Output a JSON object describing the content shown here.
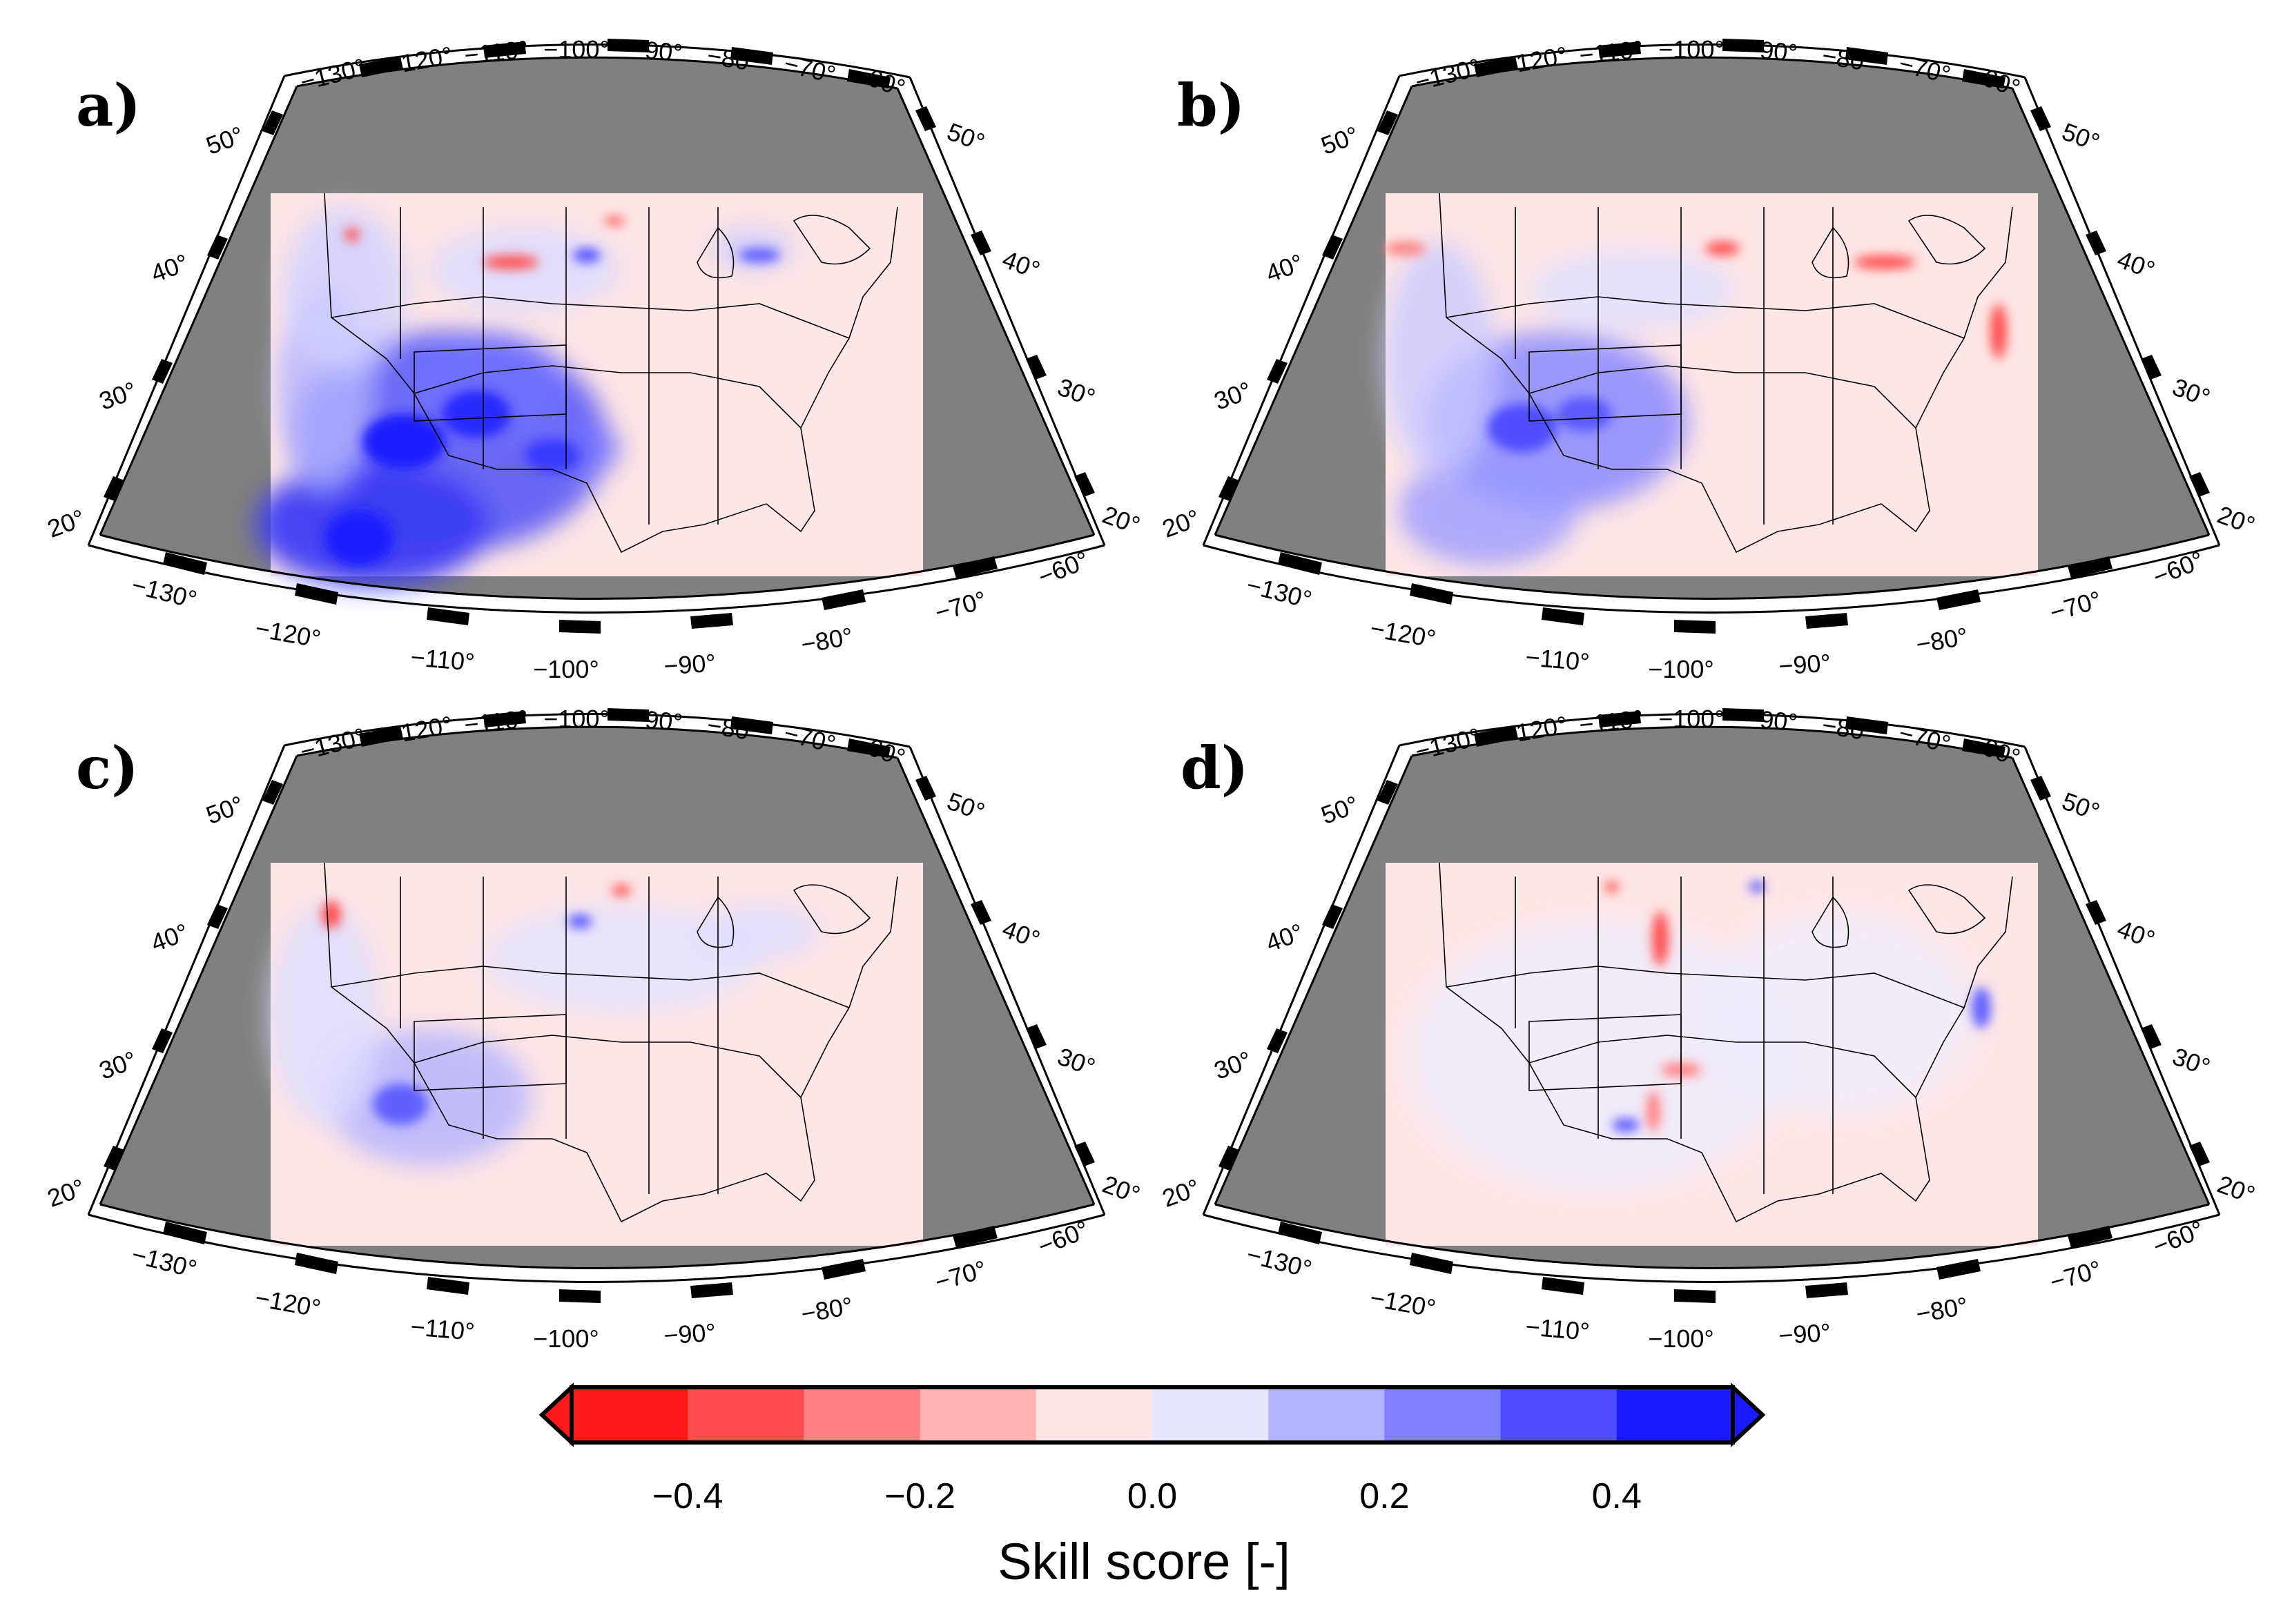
{
  "panels": [
    {
      "label": "a)",
      "pattern": "strong-southwest-positive"
    },
    {
      "label": "b)",
      "pattern": "moderate-southwest-positive"
    },
    {
      "label": "c)",
      "pattern": "weak-southwest-positive"
    },
    {
      "label": "d)",
      "pattern": "near-neutral"
    }
  ],
  "map_frame": {
    "top_lon_labels": [
      "−130°",
      "−120°",
      "−110°",
      "−100°",
      "−90°",
      "−80°",
      "−70°",
      "−60°"
    ],
    "bottom_lon_labels": [
      "−130°",
      "−120°",
      "−110°",
      "−100°",
      "−90°",
      "−80°",
      "−70°",
      "−60°"
    ],
    "lat_labels": [
      "20°",
      "30°",
      "40°",
      "50°"
    ],
    "frame_fill": "#808080"
  },
  "colorbar": {
    "title": "Skill score [-]",
    "tick_labels": [
      "−0.4",
      "−0.2",
      "0.0",
      "0.2",
      "0.4"
    ],
    "bins": [
      -0.5,
      -0.4,
      -0.3,
      -0.2,
      -0.1,
      0.0,
      0.1,
      0.2,
      0.3,
      0.4,
      0.5
    ],
    "colors": [
      "#ff1a1a",
      "#ff4d4d",
      "#ff8080",
      "#ffb3b3",
      "#ffe6e6",
      "#e6e6ff",
      "#b3b3ff",
      "#8080ff",
      "#4d4dff",
      "#1a1aff"
    ],
    "extend": "both"
  },
  "colors": {
    "background_positive_small": "#ffe6e6",
    "background_negative_small": "#e6e6ff",
    "strong_blue": "#2424f0",
    "strong_red": "#ff2a2a",
    "land_outline": "#000000"
  }
}
